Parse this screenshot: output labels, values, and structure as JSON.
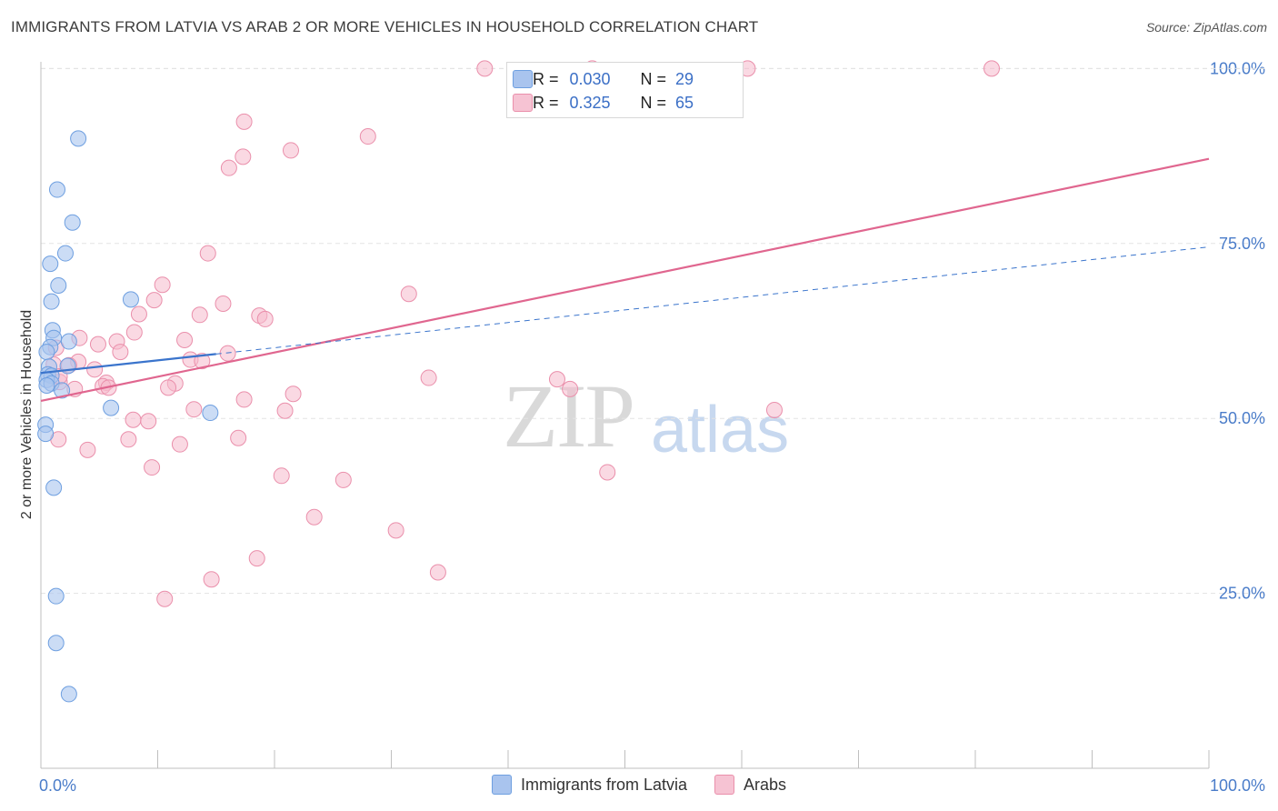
{
  "title": "IMMIGRANTS FROM LATVIA VS ARAB 2 OR MORE VEHICLES IN HOUSEHOLD CORRELATION CHART",
  "source": "Source: ZipAtlas.com",
  "watermark": {
    "zip": "ZIP",
    "atlas": "atlas"
  },
  "legend": {
    "r_label": "R =",
    "n_label": "N =",
    "rows": [
      {
        "r": "0.030",
        "n": "29"
      },
      {
        "r": "0.325",
        "n": "65"
      }
    ]
  },
  "colors": {
    "latvia_fill": "#a9c4ee",
    "latvia_stroke": "#6e9fe0",
    "latvia_line": "#3a74cc",
    "arab_fill": "#f6b9cc",
    "arab_stroke": "#ea8fab",
    "arab_line": "#e0668f",
    "grid": "#e3e3e3",
    "tick_text": "#4a7cc9"
  },
  "chart_data": {
    "type": "scatter",
    "title": "IMMIGRANTS FROM LATVIA VS ARAB 2 OR MORE VEHICLES IN HOUSEHOLD CORRELATION CHART",
    "xlabel": "",
    "ylabel": "2 or more Vehicles in Household",
    "xlim": [
      0,
      100
    ],
    "ylim": [
      0,
      102
    ],
    "x_tick_labels": [
      "0.0%",
      "100.0%"
    ],
    "y_ticks": [
      25,
      50,
      75,
      100
    ],
    "y_tick_labels": [
      "25.0%",
      "50.0%",
      "75.0%",
      "100.0%"
    ],
    "grid": true,
    "legend_placement": "bottom",
    "series": [
      {
        "name": "Immigrants from Latvia",
        "R": 0.03,
        "N": 29,
        "trend": {
          "x": [
            0,
            15
          ],
          "y": [
            56.5,
            59.2
          ]
        },
        "trend_dashed": {
          "x": [
            15,
            100
          ],
          "y": [
            59.2,
            74.5
          ]
        },
        "points": [
          [
            3.2,
            90.0
          ],
          [
            1.4,
            82.7
          ],
          [
            2.7,
            78.0
          ],
          [
            2.1,
            73.6
          ],
          [
            0.8,
            72.1
          ],
          [
            1.5,
            69.0
          ],
          [
            7.7,
            67.0
          ],
          [
            0.9,
            66.7
          ],
          [
            1.0,
            62.6
          ],
          [
            1.1,
            61.5
          ],
          [
            2.4,
            61.0
          ],
          [
            0.8,
            60.2
          ],
          [
            0.5,
            59.5
          ],
          [
            2.3,
            57.5
          ],
          [
            0.7,
            57.4
          ],
          [
            0.6,
            56.3
          ],
          [
            0.9,
            56.1
          ],
          [
            0.5,
            55.5
          ],
          [
            0.9,
            55.0
          ],
          [
            1.8,
            54.0
          ],
          [
            6.0,
            51.5
          ],
          [
            14.5,
            50.8
          ],
          [
            0.4,
            49.1
          ],
          [
            0.4,
            47.8
          ],
          [
            1.1,
            40.1
          ],
          [
            1.3,
            24.6
          ],
          [
            1.3,
            17.9
          ],
          [
            2.4,
            10.6
          ],
          [
            0.5,
            54.7
          ]
        ]
      },
      {
        "name": "Arabs",
        "R": 0.325,
        "N": 65,
        "trend": {
          "x": [
            0,
            100
          ],
          "y": [
            52.5,
            87.1
          ]
        },
        "points": [
          [
            38.0,
            100.0
          ],
          [
            47.2,
            100.0
          ],
          [
            60.5,
            100.0
          ],
          [
            81.4,
            100.0
          ],
          [
            17.4,
            92.4
          ],
          [
            28.0,
            90.3
          ],
          [
            21.4,
            88.3
          ],
          [
            17.3,
            87.4
          ],
          [
            16.1,
            85.8
          ],
          [
            14.3,
            73.6
          ],
          [
            10.4,
            69.1
          ],
          [
            31.5,
            67.8
          ],
          [
            9.7,
            66.9
          ],
          [
            15.6,
            66.4
          ],
          [
            8.4,
            64.9
          ],
          [
            13.6,
            64.8
          ],
          [
            18.7,
            64.7
          ],
          [
            19.2,
            64.2
          ],
          [
            8.0,
            62.3
          ],
          [
            3.3,
            61.5
          ],
          [
            12.3,
            61.2
          ],
          [
            6.5,
            61.0
          ],
          [
            4.9,
            60.6
          ],
          [
            1.3,
            60.1
          ],
          [
            6.8,
            59.5
          ],
          [
            16.0,
            59.3
          ],
          [
            12.8,
            58.4
          ],
          [
            13.8,
            58.2
          ],
          [
            3.2,
            58.1
          ],
          [
            1.1,
            57.7
          ],
          [
            2.4,
            57.6
          ],
          [
            4.6,
            57.0
          ],
          [
            33.2,
            55.8
          ],
          [
            44.2,
            55.6
          ],
          [
            1.6,
            55.2
          ],
          [
            5.6,
            55.1
          ],
          [
            11.5,
            55.0
          ],
          [
            5.3,
            54.6
          ],
          [
            5.8,
            54.4
          ],
          [
            10.9,
            54.4
          ],
          [
            2.9,
            54.2
          ],
          [
            45.3,
            54.2
          ],
          [
            21.6,
            53.5
          ],
          [
            17.4,
            52.7
          ],
          [
            13.1,
            51.3
          ],
          [
            20.9,
            51.1
          ],
          [
            62.8,
            51.2
          ],
          [
            7.9,
            49.8
          ],
          [
            9.2,
            49.6
          ],
          [
            1.5,
            47.0
          ],
          [
            16.9,
            47.2
          ],
          [
            7.5,
            47.0
          ],
          [
            11.9,
            46.3
          ],
          [
            4.0,
            45.5
          ],
          [
            9.5,
            43.0
          ],
          [
            48.5,
            42.3
          ],
          [
            20.6,
            41.8
          ],
          [
            25.9,
            41.2
          ],
          [
            23.4,
            35.9
          ],
          [
            30.4,
            34.0
          ],
          [
            18.5,
            30.0
          ],
          [
            34.0,
            28.0
          ],
          [
            14.6,
            27.0
          ],
          [
            10.6,
            24.2
          ],
          [
            1.6,
            56.0
          ]
        ]
      }
    ]
  },
  "bottom_legend": [
    "Immigrants from Latvia",
    "Arabs"
  ]
}
